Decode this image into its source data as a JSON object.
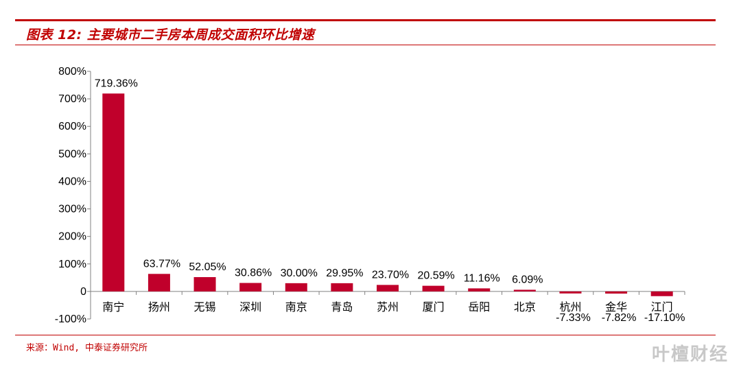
{
  "header": {
    "title": "图表 12: 主要城市二手房本周成交面积环比增速"
  },
  "footer": {
    "source": "来源：Wind, 中泰证券研究所"
  },
  "watermark": "叶檀财经",
  "colors": {
    "accent": "#c00000",
    "bar": "#c0002b",
    "text": "#000000",
    "axis": "#808080"
  },
  "chart_data": {
    "type": "bar",
    "categories": [
      "南宁",
      "扬州",
      "无锡",
      "深圳",
      "南京",
      "青岛",
      "苏州",
      "厦门",
      "岳阳",
      "北京",
      "杭州",
      "金华",
      "江门"
    ],
    "values": [
      719.36,
      63.77,
      52.05,
      30.86,
      30.0,
      29.95,
      23.7,
      20.59,
      11.16,
      6.09,
      -7.33,
      -7.82,
      -17.1
    ],
    "data_labels": [
      "719.36%",
      "63.77%",
      "52.05%",
      "30.86%",
      "30.00%",
      "29.95%",
      "23.70%",
      "20.59%",
      "11.16%",
      "6.09%",
      "-7.33%",
      "-7.82%",
      "-17.10%"
    ],
    "yticks": [
      -100,
      0,
      100,
      200,
      300,
      400,
      500,
      600,
      700,
      800
    ],
    "ytick_labels": [
      "-100%",
      "0",
      "100%",
      "200%",
      "300%",
      "400%",
      "500%",
      "600%",
      "700%",
      "800%"
    ],
    "ylim": [
      -100,
      800
    ],
    "grid": false,
    "legend": "none"
  }
}
